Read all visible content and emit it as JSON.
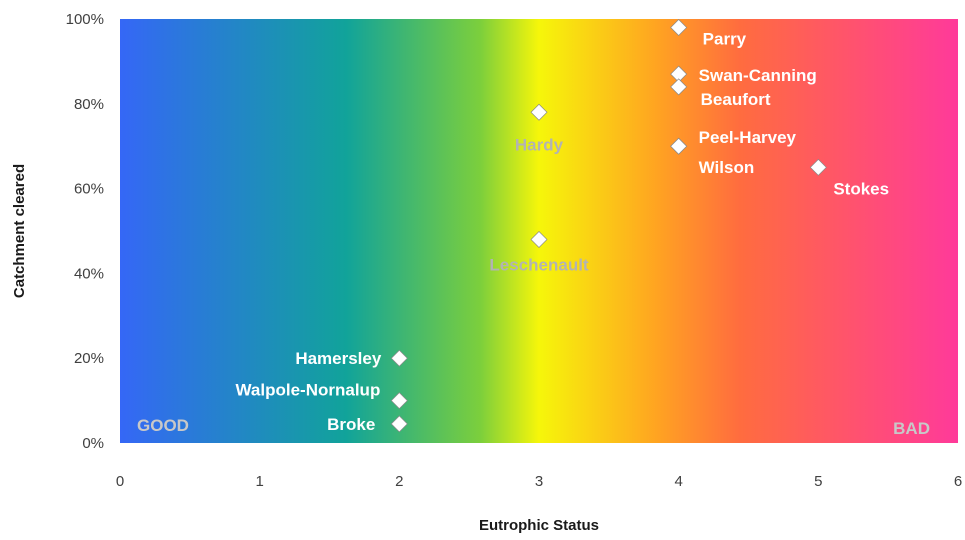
{
  "chart_data": {
    "type": "scatter",
    "title": "",
    "xlabel": "Eutrophic Status",
    "ylabel": "Catchment cleared",
    "xlim": [
      0,
      6
    ],
    "ylim": [
      0,
      100
    ],
    "x_ticks": [
      "0",
      "1",
      "2",
      "3",
      "4",
      "5",
      "6"
    ],
    "y_ticks": [
      "0%",
      "20%",
      "40%",
      "60%",
      "80%",
      "100%"
    ],
    "grid": false,
    "background_gradient": [
      "#3567f6",
      "#11a39a",
      "#7ccf3c",
      "#f6f60a",
      "#ffa421",
      "#ff6c3f",
      "#ff3a9a"
    ],
    "marker_color": "#ffffff",
    "corner_labels": {
      "good": "GOOD",
      "bad": "BAD",
      "color": "#c8c8c8"
    },
    "points": [
      {
        "name": "Parry",
        "x": 4,
        "y": 98,
        "label_color": "#ffffff"
      },
      {
        "name": "Swan-Canning",
        "x": 4,
        "y": 87,
        "label_color": "#ffffff"
      },
      {
        "name": "Beaufort",
        "x": 4,
        "y": 84,
        "label_color": "#ffffff"
      },
      {
        "name": "Hardy",
        "x": 3,
        "y": 78,
        "label_color": "#b3b3b3"
      },
      {
        "name": "Peel-Harvey",
        "x": 4,
        "y": 70,
        "label_color": "#ffffff"
      },
      {
        "name": "Wilson",
        "x": 4,
        "y": 70,
        "label_color": "#ffffff"
      },
      {
        "name": "Stokes",
        "x": 5,
        "y": 65,
        "label_color": "#ffffff"
      },
      {
        "name": "Leschenault",
        "x": 3,
        "y": 48,
        "label_color": "#b3b3b3"
      },
      {
        "name": "Hamersley",
        "x": 2,
        "y": 20,
        "label_color": "#ffffff"
      },
      {
        "name": "Walpole-Nornalup",
        "x": 2,
        "y": 10,
        "label_color": "#ffffff"
      },
      {
        "name": "Broke",
        "x": 2,
        "y": 4.5,
        "label_color": "#ffffff"
      }
    ]
  }
}
